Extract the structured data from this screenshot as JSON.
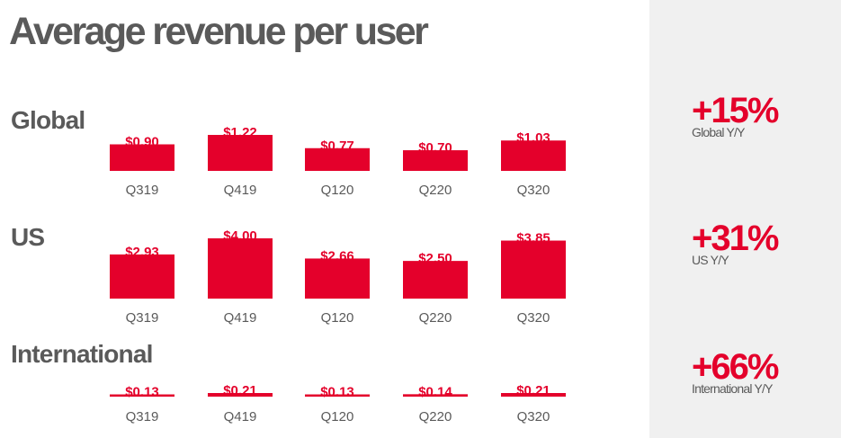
{
  "title": "Average revenue per user",
  "colors": {
    "bar": "#e4002b",
    "text": "#5a5a5a",
    "sidebar": "#f0f0f0"
  },
  "sections": [
    {
      "label": "Global"
    },
    {
      "label": "US"
    },
    {
      "label": "International"
    }
  ],
  "stats": [
    {
      "value": "+15%",
      "label": "Global Y/Y"
    },
    {
      "value": "+31%",
      "label": "US Y/Y"
    },
    {
      "value": "+66%",
      "label": "International Y/Y"
    }
  ],
  "chart_data": [
    {
      "type": "bar",
      "title": "Global",
      "categories": [
        "Q319",
        "Q419",
        "Q120",
        "Q220",
        "Q320"
      ],
      "values": [
        0.9,
        1.22,
        0.77,
        0.7,
        1.03
      ],
      "value_labels": [
        "$0.90",
        "$1.22",
        "$0.77",
        "$0.70",
        "$1.03"
      ],
      "ylim": [
        0,
        1.22
      ],
      "grid": false
    },
    {
      "type": "bar",
      "title": "US",
      "categories": [
        "Q319",
        "Q419",
        "Q120",
        "Q220",
        "Q320"
      ],
      "values": [
        2.93,
        4.0,
        2.66,
        2.5,
        3.85
      ],
      "value_labels": [
        "$2.93",
        "$4.00",
        "$2.66",
        "$2.50",
        "$3.85"
      ],
      "ylim": [
        0,
        4.0
      ],
      "grid": false
    },
    {
      "type": "bar",
      "title": "International",
      "categories": [
        "Q319",
        "Q419",
        "Q120",
        "Q220",
        "Q320"
      ],
      "values": [
        0.13,
        0.21,
        0.13,
        0.14,
        0.21
      ],
      "value_labels": [
        "$0.13",
        "$0.21",
        "$0.13",
        "$0.14",
        "$0.21"
      ],
      "ylim": [
        0,
        0.21
      ],
      "grid": false
    }
  ]
}
